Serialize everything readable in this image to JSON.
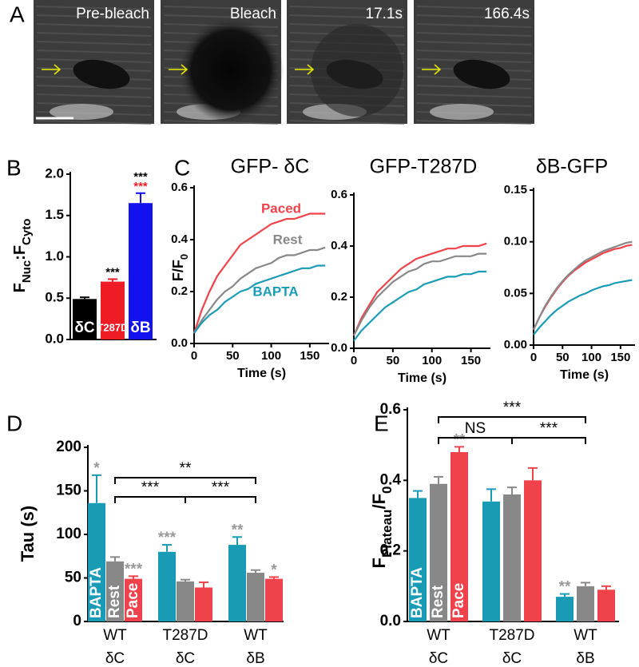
{
  "panel_labels": [
    "A",
    "B",
    "C",
    "D",
    "E"
  ],
  "image_labels": [
    "Pre-bleach",
    "Bleach",
    "17.1s",
    "166.4s"
  ],
  "chart_data": [
    {
      "type": "bar",
      "y_label": [
        {
          "text": "F"
        },
        {
          "text": "Nuc",
          "sub": true
        },
        {
          "text": ":F"
        },
        {
          "text": "Cyto",
          "sub": true
        }
      ],
      "categories": [
        "δC",
        "T287D",
        "δB"
      ],
      "values": [
        0.49,
        0.7,
        1.65
      ],
      "errors": [
        0.02,
        0.03,
        0.12
      ],
      "colors": [
        "#000000",
        "#ee1c25",
        "#1212ee"
      ],
      "stars": [
        null,
        "***",
        "***"
      ],
      "stars_color": "#000000",
      "stars2": [
        null,
        null,
        "***"
      ],
      "stars2_color": "#ee1c25",
      "ylim": [
        0,
        2.0
      ],
      "yticks": [
        {
          "value": 0,
          "label": "0.0"
        },
        0.5,
        {
          "value": 1,
          "label": "1.0"
        },
        1.5,
        {
          "value": 2,
          "label": "2.0"
        }
      ]
    },
    {
      "type": "line",
      "title": "GFP- δC",
      "y_label": [
        {
          "text": "F/F"
        },
        {
          "text": "0",
          "sub": true
        }
      ],
      "x_label": "Time (s)",
      "x": [
        0,
        10,
        20,
        30,
        40,
        50,
        60,
        70,
        80,
        90,
        100,
        110,
        120,
        130,
        140,
        150,
        160,
        170
      ],
      "series": [
        {
          "name": "Paced",
          "color": "#f0424a",
          "values": [
            0.04,
            0.13,
            0.2,
            0.26,
            0.3,
            0.34,
            0.38,
            0.4,
            0.42,
            0.44,
            0.46,
            0.47,
            0.48,
            0.48,
            0.49,
            0.5,
            0.5,
            0.5
          ]
        },
        {
          "name": "Rest",
          "color": "#888888",
          "values": [
            0.04,
            0.09,
            0.13,
            0.17,
            0.2,
            0.22,
            0.25,
            0.27,
            0.29,
            0.3,
            0.31,
            0.33,
            0.34,
            0.34,
            0.35,
            0.36,
            0.36,
            0.37
          ]
        },
        {
          "name": "BAPTA",
          "color": "#1a9bb5",
          "values": [
            0.04,
            0.08,
            0.11,
            0.13,
            0.16,
            0.18,
            0.2,
            0.21,
            0.23,
            0.24,
            0.25,
            0.26,
            0.27,
            0.28,
            0.29,
            0.29,
            0.3,
            0.3
          ]
        }
      ],
      "xlim": [
        0,
        175
      ],
      "xticks": [
        0,
        50,
        100,
        150
      ],
      "ylim": [
        0,
        0.6
      ],
      "yticks": [
        {
          "value": 0,
          "label": "0.0"
        },
        0.2,
        0.4,
        0.6
      ]
    },
    {
      "type": "line",
      "title": "GFP-T287D",
      "x_label": "Time (s)",
      "x": [
        0,
        10,
        20,
        30,
        40,
        50,
        60,
        70,
        80,
        90,
        100,
        110,
        120,
        130,
        140,
        150,
        160,
        170
      ],
      "series": [
        {
          "color": "#f0424a",
          "values": [
            0.05,
            0.12,
            0.17,
            0.22,
            0.25,
            0.28,
            0.31,
            0.33,
            0.35,
            0.36,
            0.37,
            0.38,
            0.39,
            0.39,
            0.4,
            0.4,
            0.4,
            0.41
          ]
        },
        {
          "color": "#888888",
          "values": [
            0.05,
            0.11,
            0.16,
            0.2,
            0.23,
            0.26,
            0.28,
            0.3,
            0.31,
            0.33,
            0.34,
            0.34,
            0.35,
            0.36,
            0.36,
            0.36,
            0.37,
            0.37
          ]
        },
        {
          "color": "#1a9bb5",
          "values": [
            0.03,
            0.07,
            0.1,
            0.13,
            0.16,
            0.18,
            0.2,
            0.22,
            0.23,
            0.25,
            0.26,
            0.27,
            0.28,
            0.28,
            0.29,
            0.29,
            0.3,
            0.3
          ]
        }
      ],
      "xlim": [
        0,
        175
      ],
      "xticks": [
        0,
        50,
        100,
        150
      ],
      "ylim": [
        0,
        0.6
      ],
      "yticks": [
        {
          "value": 0,
          "label": "0.0"
        },
        0.2,
        0.4,
        0.6
      ]
    },
    {
      "type": "line",
      "title": "δB-GFP",
      "x_label": "Time (s)",
      "x": [
        0,
        10,
        20,
        30,
        40,
        50,
        60,
        70,
        80,
        90,
        100,
        110,
        120,
        130,
        140,
        150,
        160,
        170
      ],
      "series": [
        {
          "color": "#f0424a",
          "values": [
            0.015,
            0.027,
            0.037,
            0.046,
            0.054,
            0.061,
            0.067,
            0.072,
            0.076,
            0.08,
            0.083,
            0.086,
            0.089,
            0.091,
            0.093,
            0.094,
            0.096,
            0.097
          ]
        },
        {
          "color": "#888888",
          "values": [
            0.015,
            0.027,
            0.038,
            0.047,
            0.055,
            0.062,
            0.068,
            0.073,
            0.078,
            0.082,
            0.085,
            0.088,
            0.091,
            0.093,
            0.095,
            0.097,
            0.099,
            0.1
          ]
        },
        {
          "color": "#1a9bb5",
          "values": [
            0.01,
            0.017,
            0.023,
            0.029,
            0.034,
            0.038,
            0.042,
            0.045,
            0.048,
            0.05,
            0.053,
            0.055,
            0.057,
            0.058,
            0.06,
            0.061,
            0.062,
            0.063
          ]
        }
      ],
      "xlim": [
        0,
        175
      ],
      "xticks": [
        0,
        50,
        100,
        150
      ],
      "ylim": [
        0,
        0.15
      ],
      "yticks": [
        {
          "value": 0,
          "label": "0.00"
        },
        0.05,
        {
          "value": 0.1,
          "label": "0.10"
        },
        0.15
      ]
    },
    {
      "type": "bar",
      "y_label": [
        {
          "text": "Tau (s)"
        }
      ],
      "categories": [
        "WT",
        "T287D",
        "WT"
      ],
      "category_sublabels": [
        "δC",
        "δC",
        "δB"
      ],
      "series": [
        {
          "name": "BAPTA",
          "color": "#1a9bb5",
          "values": [
            136,
            80,
            88
          ],
          "errors": [
            32,
            8,
            9
          ],
          "stars": [
            "*",
            "***",
            "**"
          ]
        },
        {
          "name": "Rest",
          "color": "#888888",
          "values": [
            69,
            46,
            56
          ],
          "errors": [
            5,
            2,
            3
          ]
        },
        {
          "name": "Pace",
          "color": "#f0424a",
          "values": [
            49,
            39,
            49
          ],
          "errors": [
            3,
            6,
            2
          ],
          "stars": [
            "***",
            null,
            "*"
          ]
        }
      ],
      "stars_color": "#999999",
      "brackets": [
        {
          "text": "**"
        },
        {
          "text": "***"
        },
        {
          "text": "***"
        }
      ],
      "ylim": [
        0,
        200
      ],
      "yticks": [
        0,
        50,
        100,
        150,
        200
      ]
    },
    {
      "type": "bar",
      "y_label": [
        {
          "text": "F"
        },
        {
          "text": "Plateau",
          "sub": true
        },
        {
          "text": "/F"
        },
        {
          "text": "0",
          "sub": true
        }
      ],
      "categories": [
        "WT",
        "T287D",
        "WT"
      ],
      "category_sublabels": [
        "δC",
        "δC",
        "δB"
      ],
      "series": [
        {
          "name": "BAPTA",
          "color": "#1a9bb5",
          "values": [
            0.35,
            0.34,
            0.07
          ],
          "errors": [
            0.02,
            0.035,
            0.008
          ],
          "stars": [
            null,
            null,
            "**"
          ]
        },
        {
          "name": "Rest",
          "color": "#888888",
          "values": [
            0.39,
            0.36,
            0.1
          ],
          "errors": [
            0.02,
            0.02,
            0.01
          ]
        },
        {
          "name": "Pace",
          "color": "#f0424a",
          "values": [
            0.48,
            0.4,
            0.09
          ],
          "errors": [
            0.015,
            0.035,
            0.01
          ],
          "stars": [
            "**",
            null,
            null
          ]
        }
      ],
      "stars_color": "#999999",
      "brackets": [
        {
          "text": "***"
        },
        {
          "text": "NS"
        },
        {
          "text": "***"
        }
      ],
      "ylim": [
        0,
        0.6
      ],
      "yticks": [
        {
          "value": 0,
          "label": "0.0"
        },
        0.2,
        0.4,
        0.6
      ]
    }
  ]
}
